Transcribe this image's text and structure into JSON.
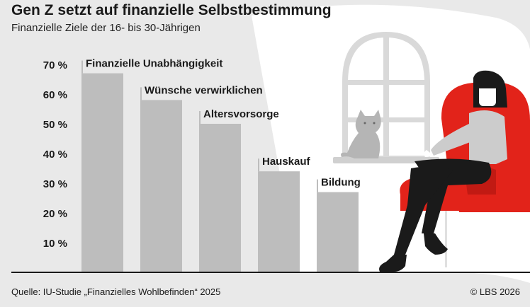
{
  "title": "Gen Z setzt auf finanzielle Selbstbestimmung",
  "subtitle": "Finanzielle Ziele der 16- bis 30-Jährigen",
  "source": "Quelle: IU-Studie „Finanzielles Wohlbefinden“ 2025",
  "credit": "© LBS 2026",
  "colors": {
    "background": "#e9e9e9",
    "bar": "#bdbdbd",
    "chair": "#e2231a",
    "window": "#ffffff",
    "cat": "#b5b5b5",
    "sweater": "#cccccc",
    "pants": "#1a1a1a"
  },
  "illustration": {
    "icons": [
      "window-icon",
      "cat-icon",
      "armchair-icon",
      "woman-icon"
    ]
  },
  "chart_data": {
    "type": "bar",
    "title": "Gen Z setzt auf finanzielle Selbstbestimmung",
    "subtitle": "Finanzielle Ziele der 16- bis 30-Jährigen",
    "categories": [
      "Finanzielle Unabhängigkeit",
      "Wünsche verwirklichen",
      "Altersvorsorge",
      "Hauskauf",
      "Bildung"
    ],
    "values": [
      67,
      58,
      50,
      34,
      27
    ],
    "ylim": [
      0,
      70
    ],
    "yticks": [
      10,
      20,
      30,
      40,
      50,
      60,
      70
    ],
    "ytick_labels": [
      "10 %",
      "20 %",
      "30 %",
      "40 %",
      "50 %",
      "60 %",
      "70 %"
    ],
    "xlabel": "",
    "ylabel": "",
    "grid": false,
    "legend": "none"
  }
}
